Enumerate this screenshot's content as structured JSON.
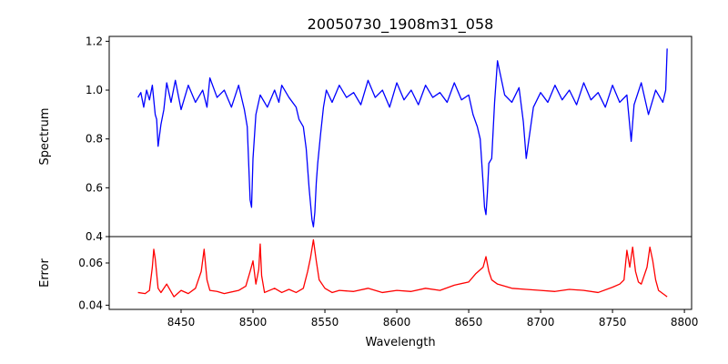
{
  "chart_data": {
    "type": "line",
    "title": "20050730_1908m31_058",
    "xlabel": "Wavelength",
    "xlim": [
      8400,
      8805
    ],
    "xticks": [
      8450,
      8500,
      8550,
      8600,
      8650,
      8700,
      8750,
      8800
    ],
    "panels": [
      {
        "id": "spectrum",
        "ylabel": "Spectrum",
        "ylim": [
          0.4,
          1.22
        ],
        "yticks": [
          0.4,
          0.6,
          0.8,
          1.0,
          1.2
        ],
        "ytick_labels": [
          "0.4",
          "0.6",
          "0.8",
          "1.0",
          "1.2"
        ],
        "series": [
          {
            "color": "#0000ff",
            "x": [
              8420,
              8422,
              8424,
              8426,
              8428,
              8430,
              8432,
              8433,
              8434,
              8436,
              8438,
              8440,
              8443,
              8446,
              8450,
              8455,
              8460,
              8465,
              8468,
              8470,
              8475,
              8480,
              8485,
              8490,
              8494,
              8496,
              8497,
              8498,
              8499,
              8500,
              8502,
              8505,
              8510,
              8515,
              8518,
              8520,
              8525,
              8530,
              8532,
              8535,
              8537,
              8539,
              8541,
              8542,
              8543,
              8544,
              8545,
              8547,
              8549,
              8551,
              8555,
              8560,
              8565,
              8570,
              8575,
              8580,
              8585,
              8590,
              8595,
              8600,
              8605,
              8610,
              8615,
              8620,
              8625,
              8630,
              8635,
              8640,
              8645,
              8650,
              8653,
              8656,
              8658,
              8660,
              8661,
              8662,
              8663,
              8664,
              8666,
              8668,
              8670,
              8675,
              8680,
              8685,
              8688,
              8690,
              8695,
              8700,
              8705,
              8710,
              8715,
              8720,
              8725,
              8730,
              8735,
              8740,
              8745,
              8750,
              8755,
              8760,
              8763,
              8765,
              8770,
              8775,
              8780,
              8785,
              8787,
              8788
            ],
            "y": [
              0.97,
              0.99,
              0.93,
              1.0,
              0.96,
              1.02,
              0.9,
              0.88,
              0.77,
              0.86,
              0.92,
              1.03,
              0.95,
              1.04,
              0.92,
              1.02,
              0.95,
              1.0,
              0.93,
              1.05,
              0.97,
              1.0,
              0.93,
              1.02,
              0.92,
              0.85,
              0.7,
              0.55,
              0.52,
              0.72,
              0.9,
              0.98,
              0.93,
              1.0,
              0.95,
              1.02,
              0.97,
              0.93,
              0.88,
              0.85,
              0.76,
              0.6,
              0.47,
              0.44,
              0.5,
              0.62,
              0.7,
              0.82,
              0.93,
              1.0,
              0.95,
              1.02,
              0.97,
              0.99,
              0.94,
              1.04,
              0.97,
              1.0,
              0.93,
              1.03,
              0.96,
              1.0,
              0.94,
              1.02,
              0.97,
              0.99,
              0.95,
              1.03,
              0.96,
              0.98,
              0.9,
              0.85,
              0.8,
              0.62,
              0.52,
              0.49,
              0.58,
              0.7,
              0.72,
              0.95,
              1.12,
              0.98,
              0.95,
              1.01,
              0.87,
              0.72,
              0.93,
              0.99,
              0.95,
              1.02,
              0.96,
              1.0,
              0.94,
              1.03,
              0.96,
              0.99,
              0.93,
              1.02,
              0.95,
              0.98,
              0.79,
              0.94,
              1.03,
              0.9,
              1.0,
              0.95,
              1.0,
              1.17
            ]
          }
        ]
      },
      {
        "id": "error",
        "ylabel": "Error",
        "ylim": [
          0.038,
          0.0725
        ],
        "yticks": [
          0.04,
          0.06
        ],
        "ytick_labels": [
          "0.04",
          "0.06"
        ],
        "series": [
          {
            "color": "#ff0000",
            "x": [
              8420,
              8425,
              8428,
              8430,
              8431,
              8432,
              8434,
              8436,
              8440,
              8445,
              8450,
              8455,
              8460,
              8464,
              8466,
              8468,
              8470,
              8475,
              8480,
              8490,
              8495,
              8498,
              8500,
              8502,
              8504,
              8505,
              8506,
              8508,
              8515,
              8520,
              8525,
              8530,
              8535,
              8538,
              8540,
              8542,
              8544,
              8546,
              8550,
              8555,
              8560,
              8570,
              8580,
              8590,
              8600,
              8610,
              8620,
              8630,
              8640,
              8650,
              8655,
              8660,
              8662,
              8664,
              8666,
              8670,
              8680,
              8690,
              8700,
              8710,
              8720,
              8730,
              8740,
              8750,
              8755,
              8758,
              8760,
              8762,
              8764,
              8766,
              8768,
              8770,
              8772,
              8774,
              8776,
              8778,
              8780,
              8782,
              8785,
              8788
            ],
            "y": [
              0.046,
              0.0455,
              0.047,
              0.058,
              0.0665,
              0.062,
              0.048,
              0.046,
              0.05,
              0.044,
              0.047,
              0.0455,
              0.048,
              0.056,
              0.0665,
              0.052,
              0.047,
              0.0465,
              0.0455,
              0.047,
              0.049,
              0.056,
              0.061,
              0.05,
              0.057,
              0.069,
              0.054,
              0.046,
              0.048,
              0.046,
              0.0475,
              0.046,
              0.048,
              0.056,
              0.0625,
              0.071,
              0.061,
              0.052,
              0.048,
              0.046,
              0.047,
              0.0465,
              0.048,
              0.046,
              0.047,
              0.0465,
              0.048,
              0.047,
              0.0495,
              0.051,
              0.055,
              0.058,
              0.063,
              0.056,
              0.052,
              0.05,
              0.048,
              0.0475,
              0.047,
              0.0465,
              0.0475,
              0.047,
              0.046,
              0.0485,
              0.05,
              0.052,
              0.066,
              0.058,
              0.0675,
              0.056,
              0.051,
              0.05,
              0.054,
              0.058,
              0.0675,
              0.061,
              0.052,
              0.047,
              0.0455,
              0.044
            ]
          }
        ]
      }
    ]
  }
}
